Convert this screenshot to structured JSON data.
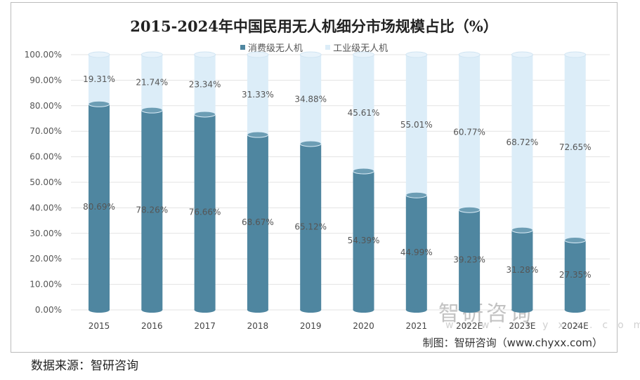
{
  "chart_data": {
    "type": "bar",
    "stacked": true,
    "title": "2015-2024年中国民用无人机细分市场规模占比（%）",
    "categories": [
      "2015",
      "2016",
      "2017",
      "2018",
      "2019",
      "2020",
      "2021",
      "2022E",
      "2023E",
      "2024E"
    ],
    "series": [
      {
        "name": "消费级无人机",
        "values": [
          80.69,
          78.26,
          76.66,
          68.67,
          65.12,
          54.39,
          44.99,
          39.23,
          31.28,
          27.35
        ],
        "labels": [
          "80.69%",
          "78.26%",
          "76.66%",
          "68.67%",
          "65.12%",
          "54.39%",
          "44.99%",
          "39.23%",
          "31.28%",
          "27.35%"
        ],
        "color": "#4f86a0"
      },
      {
        "name": "工业级无人机",
        "values": [
          19.31,
          21.74,
          23.34,
          31.33,
          34.88,
          45.61,
          55.01,
          60.77,
          68.72,
          72.65
        ],
        "labels": [
          "19.31%",
          "21.74%",
          "23.34%",
          "31.33%",
          "34.88%",
          "45.61%",
          "55.01%",
          "60.77%",
          "68.72%",
          "72.65%"
        ],
        "color": "#dcedf8"
      }
    ],
    "ylim": [
      0,
      100
    ],
    "yticks": [
      "0.00%",
      "10.00%",
      "20.00%",
      "30.00%",
      "40.00%",
      "50.00%",
      "60.00%",
      "70.00%",
      "80.00%",
      "90.00%",
      "100.00%"
    ],
    "grid": true,
    "legend": "top"
  },
  "watermark": "智研咨询",
  "watermark_url": "www.chyxx.com",
  "credit": "制图：智研咨询（www.chyxx.com）",
  "source": "数据来源：智研咨询"
}
